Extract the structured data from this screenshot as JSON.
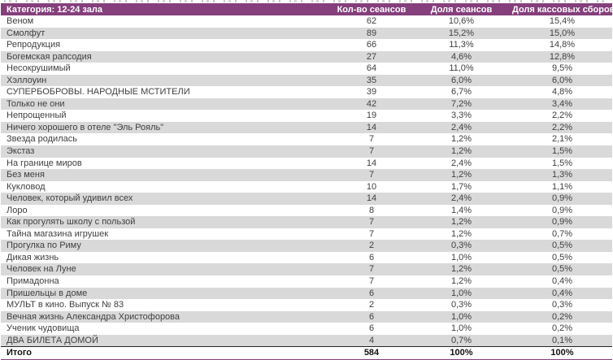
{
  "colors": {
    "header_bg": "#853f7c",
    "stripe": "#d9d9d9",
    "body_text": "#404040",
    "total_text": "#111111",
    "total_rule": "#262626"
  },
  "table": {
    "columns": [
      {
        "key": "title",
        "label": "Категория: 12-24 зала",
        "align": "left"
      },
      {
        "key": "sessions",
        "label": "Кол-во сеансов",
        "align": "center"
      },
      {
        "key": "share-sessions",
        "label": "Доля сеансов",
        "align": "center"
      },
      {
        "key": "share-box",
        "label": "Доля кассовых сборов",
        "align": "center"
      }
    ],
    "rows": [
      [
        "Веном",
        "62",
        "10,6%",
        "15,4%"
      ],
      [
        "Смолфут",
        "89",
        "15,2%",
        "15,0%"
      ],
      [
        "Репродукция",
        "66",
        "11,3%",
        "14,8%"
      ],
      [
        "Богемская рапсодия",
        "27",
        "4,6%",
        "12,8%"
      ],
      [
        "Несокрушимый",
        "64",
        "11,0%",
        "9,5%"
      ],
      [
        "Хэллоуин",
        "35",
        "6,0%",
        "6,0%"
      ],
      [
        "СУПЕРБОБРОВЫ. НАРОДНЫЕ МСТИТЕЛИ",
        "39",
        "6,7%",
        "4,8%"
      ],
      [
        "Только не они",
        "42",
        "7,2%",
        "3,4%"
      ],
      [
        "Непрощенный",
        "19",
        "3,3%",
        "2,2%"
      ],
      [
        "Ничего хорошего в отеле \"Эль Рояль\"",
        "14",
        "2,4%",
        "2,2%"
      ],
      [
        "Звезда родилась",
        "7",
        "1,2%",
        "2,1%"
      ],
      [
        "Экстаз",
        "7",
        "1,2%",
        "1,5%"
      ],
      [
        "На границе миров",
        "14",
        "2,4%",
        "1,5%"
      ],
      [
        "Без меня",
        "7",
        "1,2%",
        "1,3%"
      ],
      [
        "Кукловод",
        "10",
        "1,7%",
        "1,1%"
      ],
      [
        "Человек, который удивил всех",
        "14",
        "2,4%",
        "0,9%"
      ],
      [
        "Лоро",
        "8",
        "1,4%",
        "0,9%"
      ],
      [
        "Как прогулять школу с пользой",
        "7",
        "1,2%",
        "0,9%"
      ],
      [
        "Тайна магазина игрушек",
        "7",
        "1,2%",
        "0,7%"
      ],
      [
        "Прогулка по Риму",
        "2",
        "0,3%",
        "0,5%"
      ],
      [
        "Дикая жизнь",
        "6",
        "1,0%",
        "0,5%"
      ],
      [
        "Человек на Луне",
        "7",
        "1,2%",
        "0,5%"
      ],
      [
        "Примадонна",
        "7",
        "1,2%",
        "0,4%"
      ],
      [
        "Пришельцы в доме",
        "6",
        "1,0%",
        "0,4%"
      ],
      [
        "МУЛЬТ в кино. Выпуск № 83",
        "2",
        "0,3%",
        "0,3%"
      ],
      [
        "Вечная жизнь Александра Христофорова",
        "6",
        "1,0%",
        "0,2%"
      ],
      [
        "Ученик чудовища",
        "6",
        "1,0%",
        "0,2%"
      ],
      [
        "ДВА БИЛЕТА ДОМОЙ",
        "4",
        "0,7%",
        "0,1%"
      ]
    ],
    "total": [
      "Итого",
      "584",
      "100%",
      "100%"
    ]
  }
}
